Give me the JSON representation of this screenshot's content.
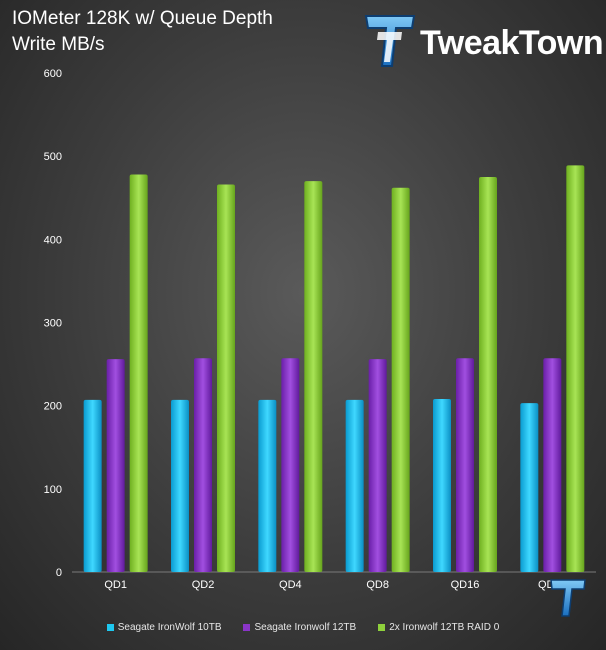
{
  "header": {
    "title_line1": "IOMeter 128K w/ Queue Depth",
    "title_line2": "Write MB/s",
    "brand": "TweakTown"
  },
  "colors": {
    "series1": "#1ec8f0",
    "series2": "#8a35c8",
    "series3": "#8fd13c",
    "axis_text": "#ffffff",
    "grid": "#6a6a6a"
  },
  "chart_data": {
    "type": "bar",
    "title": "IOMeter 128K w/ Queue Depth",
    "subtitle": "Write MB/s",
    "xlabel": "",
    "ylabel": "",
    "categories": [
      "QD1",
      "QD2",
      "QD4",
      "QD8",
      "QD16",
      "QD32"
    ],
    "series": [
      {
        "name": "Seagate IronWolf 10TB",
        "values": [
          207,
          207,
          207,
          207,
          208,
          203
        ]
      },
      {
        "name": "Seagate Ironwolf 12TB",
        "values": [
          256,
          257,
          257,
          256,
          257,
          257
        ]
      },
      {
        "name": "2x Ironwolf 12TB RAID 0",
        "values": [
          478,
          466,
          470,
          462,
          475,
          489
        ]
      }
    ],
    "ylim": [
      0,
      600
    ],
    "yticks": [
      0,
      100,
      200,
      300,
      400,
      500,
      600
    ],
    "grid": false,
    "legend_position": "bottom"
  }
}
